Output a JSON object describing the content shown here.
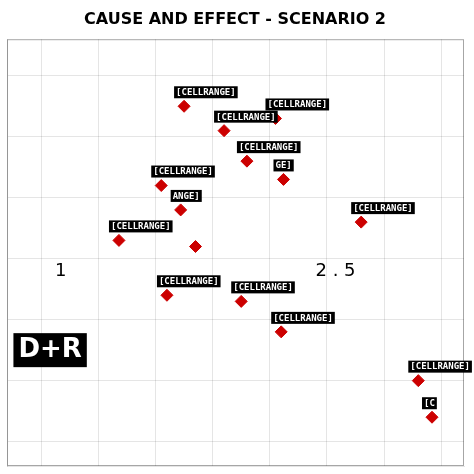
{
  "chart_data": {
    "type": "scatter",
    "title": "CAUSE AND EFFECT - SCENARIO 2",
    "x": [
      1.75,
      2.1,
      2.3,
      1.55,
      1.72,
      1.18,
      1.85,
      2.55,
      2.62,
      3.3,
      1.6,
      2.25,
      2.6,
      3.8,
      3.92
    ],
    "values": [
      3.75,
      3.55,
      3.3,
      3.1,
      2.9,
      2.65,
      2.6,
      3.65,
      3.15,
      2.8,
      2.2,
      2.15,
      1.9,
      1.5,
      1.2
    ],
    "point_labels": [
      "[CELLRANGE]",
      "[CELLRANGE]",
      "[CELLRANGE]",
      "[CELLRANGE]",
      "ANGE]",
      "[CELLRANGE]",
      null,
      "[CELLRANGE]",
      "GE]",
      "[CELLRANGE]",
      "[CELLRANGE]",
      "[CELLRANGE]",
      "[CELLRANGE]",
      "[CELLRANGE]",
      "[C"
    ],
    "color": "#cc0000",
    "marker": "diamond",
    "annotations": [
      {
        "text": "1",
        "x": 0.62,
        "y": 2.4,
        "color": "#000000"
      },
      {
        "text": "2 . 5",
        "x": 2.9,
        "y": 2.4,
        "color": "#000000"
      },
      {
        "text": "D+R",
        "x": 0.3,
        "y": 1.75,
        "color": "#ffffff",
        "background": "#000000"
      }
    ],
    "xlim": [
      0.2,
      4.2
    ],
    "ylim": [
      0.8,
      4.3
    ],
    "xticks": [
      0.5,
      1.0,
      1.5,
      2.0,
      2.5,
      3.0,
      3.5,
      4.0
    ],
    "yticks": [
      1.0,
      1.5,
      2.0,
      2.5,
      3.0,
      3.5,
      4.0
    ],
    "grid": true,
    "tick_labels": false
  }
}
